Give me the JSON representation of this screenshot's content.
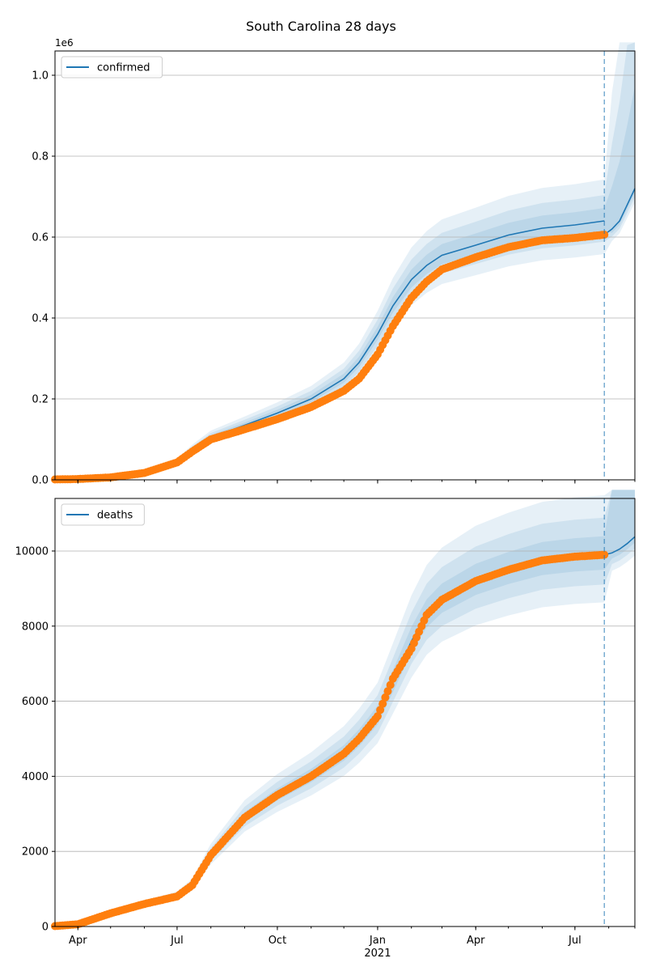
{
  "title": "South Carolina 28 days",
  "colors": {
    "model": "#1f77b4",
    "observed": "#ff7f0e",
    "band": "#1f77b4",
    "grid": "#b0b0b0",
    "vline": "#1f77b4"
  },
  "chart_data": [
    {
      "type": "line",
      "panel": "top",
      "legend": "confirmed",
      "legend_position": "upper-left",
      "offset_text": "1e6",
      "ylim": [
        0,
        1060000
      ],
      "yticks": [
        0,
        200000,
        400000,
        600000,
        800000,
        1000000
      ],
      "ytick_labels": [
        "0.0",
        "0.2",
        "0.4",
        "0.6",
        "0.8",
        "1.0"
      ],
      "grid": "y",
      "forecast_start": "2021-07-28",
      "model_curve": {
        "x": [
          "2020-03-11",
          "2020-04-01",
          "2020-05-01",
          "2020-06-01",
          "2020-07-01",
          "2020-07-15",
          "2020-08-01",
          "2020-09-01",
          "2020-10-01",
          "2020-11-01",
          "2020-12-01",
          "2020-12-15",
          "2021-01-01",
          "2021-01-15",
          "2021-02-01",
          "2021-02-15",
          "2021-03-01",
          "2021-04-01",
          "2021-05-01",
          "2021-06-01",
          "2021-07-01",
          "2021-07-28"
        ],
        "y": [
          1000,
          2000,
          6000,
          18000,
          45000,
          75000,
          105000,
          135000,
          165000,
          200000,
          250000,
          290000,
          360000,
          430000,
          495000,
          530000,
          555000,
          580000,
          605000,
          622000,
          630000,
          640000
        ]
      },
      "observed": {
        "x": [
          "2020-03-11",
          "2020-04-01",
          "2020-05-01",
          "2020-06-01",
          "2020-07-01",
          "2020-07-15",
          "2020-08-01",
          "2020-09-01",
          "2020-10-01",
          "2020-11-01",
          "2020-12-01",
          "2020-12-15",
          "2021-01-01",
          "2021-01-15",
          "2021-02-01",
          "2021-02-15",
          "2021-03-01",
          "2021-04-01",
          "2021-05-01",
          "2021-06-01",
          "2021-07-01",
          "2021-07-28"
        ],
        "y": [
          1000,
          2000,
          6000,
          17000,
          43000,
          70000,
          100000,
          125000,
          150000,
          180000,
          220000,
          250000,
          310000,
          380000,
          450000,
          490000,
          520000,
          550000,
          575000,
          592000,
          598000,
          606000
        ]
      },
      "forecast": {
        "x": [
          "2021-07-28",
          "2021-08-04",
          "2021-08-11",
          "2021-08-18",
          "2021-08-25"
        ],
        "y": [
          606000,
          620000,
          640000,
          680000,
          720000
        ]
      }
    },
    {
      "type": "line",
      "panel": "bottom",
      "legend": "deaths",
      "legend_position": "upper-left",
      "ylim": [
        0,
        11400
      ],
      "yticks": [
        0,
        2000,
        4000,
        6000,
        8000,
        10000
      ],
      "ytick_labels": [
        "0",
        "2000",
        "4000",
        "6000",
        "8000",
        "10000"
      ],
      "grid": "y",
      "forecast_start": "2021-07-28",
      "xticks": [
        "Apr",
        "Jul",
        "Oct",
        "Jan",
        "Apr",
        "Jul"
      ],
      "xtick_dates": [
        "2020-04-01",
        "2020-07-01",
        "2020-10-01",
        "2021-01-01",
        "2021-04-01",
        "2021-07-01"
      ],
      "xtick_sublabel": "2021",
      "model_curve": {
        "x": [
          "2020-03-11",
          "2020-04-01",
          "2020-05-01",
          "2020-06-01",
          "2020-07-01",
          "2020-07-15",
          "2020-08-01",
          "2020-09-01",
          "2020-10-01",
          "2020-11-01",
          "2020-12-01",
          "2020-12-15",
          "2021-01-01",
          "2021-01-15",
          "2021-02-01",
          "2021-02-15",
          "2021-03-01",
          "2021-04-01",
          "2021-05-01",
          "2021-06-01",
          "2021-07-01",
          "2021-07-28"
        ],
        "y": [
          10,
          60,
          350,
          600,
          800,
          1100,
          1900,
          2900,
          3500,
          4000,
          4600,
          5000,
          5600,
          6500,
          7600,
          8300,
          8700,
          9200,
          9500,
          9750,
          9850,
          9900
        ]
      },
      "observed": {
        "x": [
          "2020-03-11",
          "2020-04-01",
          "2020-05-01",
          "2020-06-01",
          "2020-07-01",
          "2020-07-15",
          "2020-08-01",
          "2020-09-01",
          "2020-10-01",
          "2020-11-01",
          "2020-12-01",
          "2020-12-15",
          "2021-01-01",
          "2021-01-15",
          "2021-02-01",
          "2021-02-15",
          "2021-03-01",
          "2021-04-01",
          "2021-05-01",
          "2021-06-01",
          "2021-07-01",
          "2021-07-28"
        ],
        "y": [
          10,
          60,
          350,
          600,
          800,
          1100,
          1900,
          2900,
          3500,
          4000,
          4600,
          5000,
          5600,
          6600,
          7400,
          8300,
          8700,
          9200,
          9500,
          9750,
          9850,
          9900
        ]
      },
      "forecast": {
        "x": [
          "2021-07-28",
          "2021-08-04",
          "2021-08-11",
          "2021-08-18",
          "2021-08-25"
        ],
        "y": [
          9900,
          9950,
          10050,
          10200,
          10380
        ]
      }
    }
  ]
}
